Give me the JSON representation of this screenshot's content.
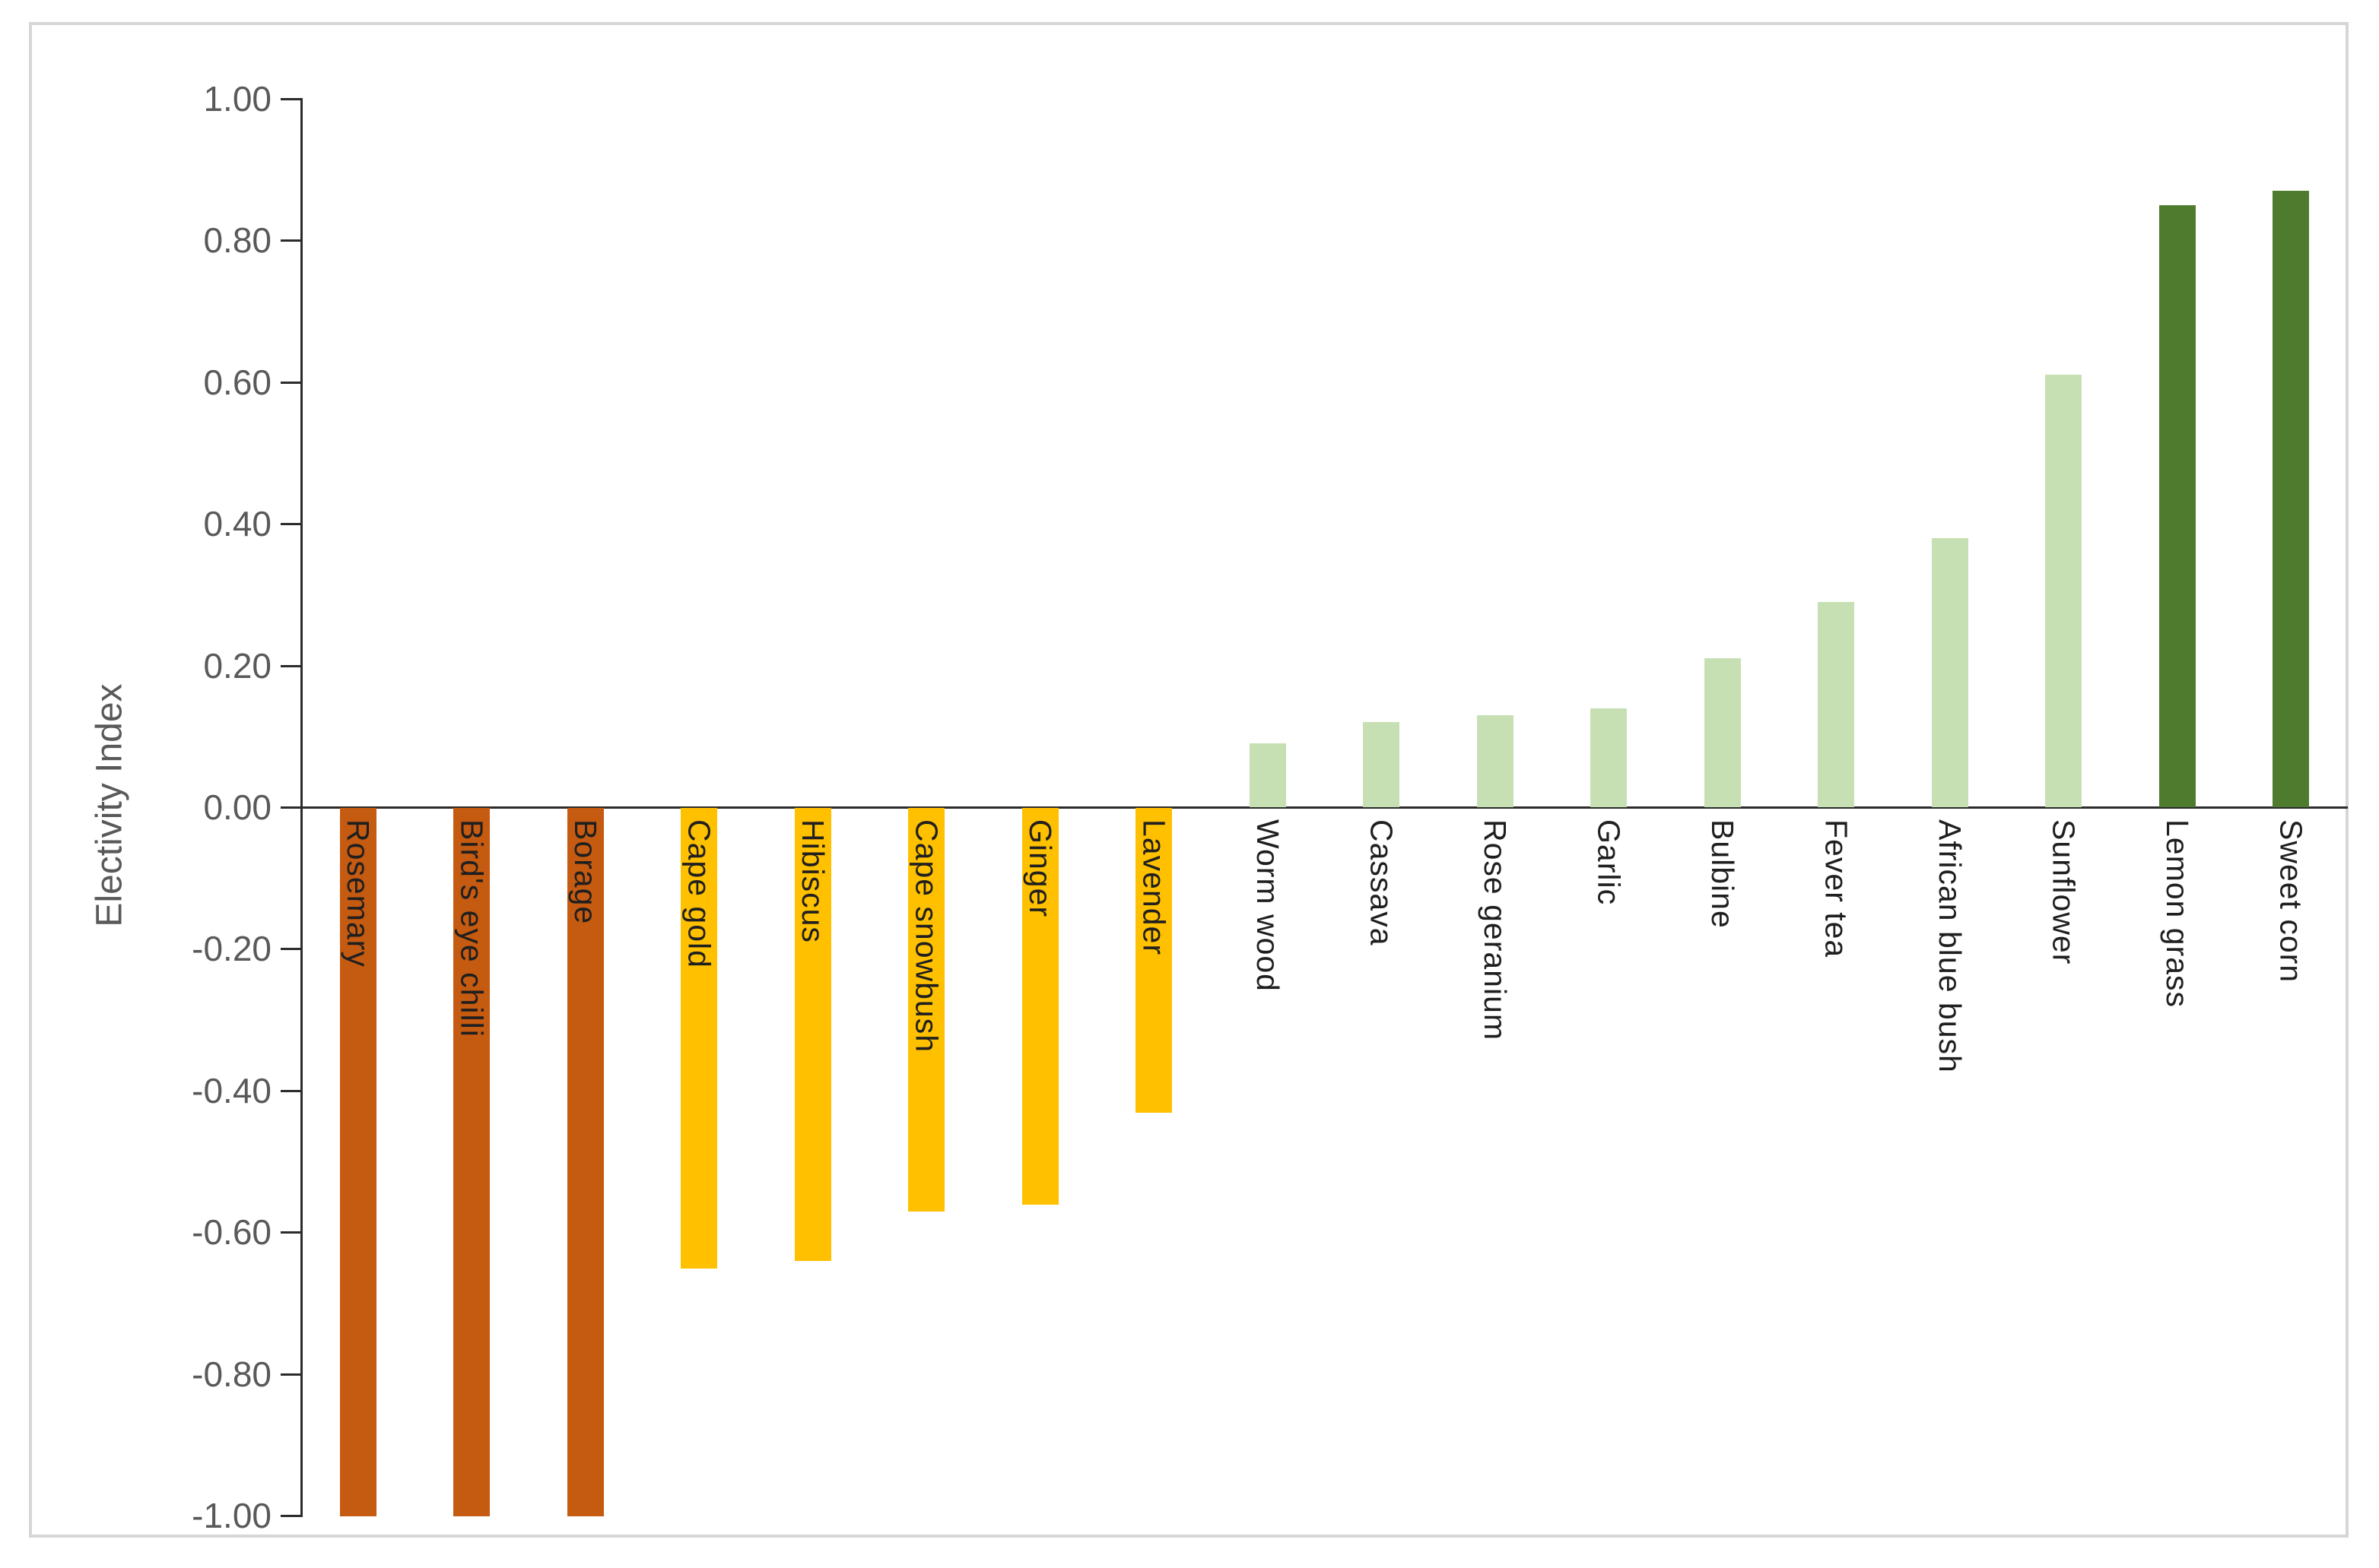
{
  "chart_data": {
    "type": "bar",
    "title": "",
    "xlabel": "",
    "ylabel": "Electivity Index",
    "ylim": [
      -1.0,
      1.0
    ],
    "ytick_step": 0.2,
    "ytick_labels": [
      "1.00",
      "0.80",
      "0.60",
      "0.40",
      "0.20",
      "0.00",
      "-0.20",
      "-0.40",
      "-0.60",
      "-0.80",
      "-1.00"
    ],
    "grid": "off",
    "legend": "none",
    "categories": [
      "Rosemary",
      "Bird's eye chilli",
      "Borage",
      "Cape gold",
      "Hibiscus",
      "Cape snowbush",
      "Ginger",
      "Lavender",
      "Worm wood",
      "Cassava",
      "Rose geranium",
      "Garlic",
      "Bulbine",
      "Fever tea",
      "African blue bush",
      "Sunflower",
      "Lemon grass",
      "Sweet corn"
    ],
    "values": [
      -1.0,
      -1.0,
      -1.0,
      -0.65,
      -0.64,
      -0.57,
      -0.56,
      -0.43,
      0.09,
      0.12,
      0.13,
      0.14,
      0.21,
      0.29,
      0.38,
      0.61,
      0.85,
      0.87
    ],
    "bar_colors": [
      "#c55a11",
      "#c55a11",
      "#c55a11",
      "#ffc000",
      "#ffc000",
      "#ffc000",
      "#ffc000",
      "#ffc000",
      "#c6e0b4",
      "#c6e0b4",
      "#c6e0b4",
      "#c6e0b4",
      "#c6e0b4",
      "#c6e0b4",
      "#c6e0b4",
      "#c6e0b4",
      "#4e7b2d",
      "#4e7b2d"
    ],
    "palette": {
      "strong_avoidance_orange": "#c55a11",
      "avoidance_gold": "#ffc000",
      "preference_light_green": "#c6e0b4",
      "strong_preference_dark_green": "#4e7b2d"
    },
    "axis_line_color": "#2b2b2b",
    "tick_label_color": "#595959",
    "category_label_color": "#1f1f1f",
    "frame_border_color": "#d6d6d6",
    "background_color": "#ffffff"
  }
}
